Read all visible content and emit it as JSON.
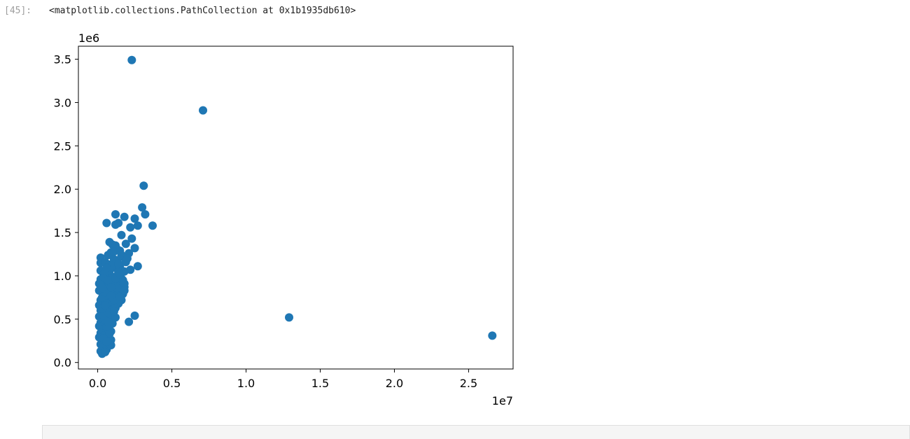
{
  "cell": {
    "prompt": "[45]:",
    "output_text": "<matplotlib.collections.PathCollection at 0x1b1935db610>"
  },
  "chart_data": {
    "type": "scatter",
    "color": "#1f77b4",
    "x_offset_label": "1e7",
    "y_offset_label": "1e6",
    "xlim": [
      -0.13,
      2.8
    ],
    "ylim": [
      -0.075,
      3.65
    ],
    "x_ticks": [
      0.0,
      0.5,
      1.0,
      1.5,
      2.0,
      2.5
    ],
    "x_tick_labels": [
      "0.0",
      "0.5",
      "1.0",
      "1.5",
      "2.0",
      "2.5"
    ],
    "y_ticks": [
      0.0,
      0.5,
      1.0,
      1.5,
      2.0,
      2.5,
      3.0,
      3.5
    ],
    "y_tick_labels": [
      "0.0",
      "0.5",
      "1.0",
      "1.5",
      "2.0",
      "2.5",
      "3.0",
      "3.5"
    ],
    "grid": false,
    "points": [
      [
        0.23,
        3.49
      ],
      [
        0.71,
        2.91
      ],
      [
        0.31,
        2.04
      ],
      [
        0.3,
        1.79
      ],
      [
        0.32,
        1.71
      ],
      [
        0.12,
        1.71
      ],
      [
        0.18,
        1.68
      ],
      [
        0.25,
        1.66
      ],
      [
        0.06,
        1.61
      ],
      [
        0.12,
        1.59
      ],
      [
        0.14,
        1.61
      ],
      [
        0.27,
        1.58
      ],
      [
        0.37,
        1.58
      ],
      [
        0.22,
        1.56
      ],
      [
        0.16,
        1.47
      ],
      [
        0.08,
        1.39
      ],
      [
        0.23,
        1.43
      ],
      [
        0.1,
        1.36
      ],
      [
        0.19,
        1.37
      ],
      [
        0.12,
        1.35
      ],
      [
        0.25,
        1.32
      ],
      [
        0.15,
        1.29
      ],
      [
        0.17,
        1.22
      ],
      [
        0.21,
        1.26
      ],
      [
        0.09,
        1.27
      ],
      [
        0.13,
        1.31
      ],
      [
        0.07,
        1.24
      ],
      [
        0.11,
        1.19
      ],
      [
        0.02,
        1.21
      ],
      [
        0.02,
        1.15
      ],
      [
        0.05,
        1.16
      ],
      [
        0.08,
        1.13
      ],
      [
        0.12,
        1.09
      ],
      [
        0.15,
        1.1
      ],
      [
        0.19,
        1.16
      ],
      [
        0.27,
        1.11
      ],
      [
        0.22,
        1.07
      ],
      [
        0.18,
        1.05
      ],
      [
        0.02,
        1.06
      ],
      [
        0.04,
        1.02
      ],
      [
        0.07,
        1.03
      ],
      [
        0.1,
        0.99
      ],
      [
        0.13,
        1.0
      ],
      [
        0.16,
        0.97
      ],
      [
        0.02,
        0.96
      ],
      [
        0.05,
        0.93
      ],
      [
        0.09,
        0.91
      ],
      [
        0.12,
        0.93
      ],
      [
        0.15,
        0.89
      ],
      [
        0.18,
        0.87
      ],
      [
        0.03,
        0.88
      ],
      [
        0.06,
        0.85
      ],
      [
        0.08,
        0.83
      ],
      [
        0.11,
        0.84
      ],
      [
        0.14,
        0.81
      ],
      [
        0.17,
        0.79
      ],
      [
        0.01,
        0.83
      ],
      [
        0.04,
        0.79
      ],
      [
        0.07,
        0.77
      ],
      [
        0.1,
        0.76
      ],
      [
        0.13,
        0.74
      ],
      [
        0.16,
        0.72
      ],
      [
        0.02,
        0.72
      ],
      [
        0.05,
        0.7
      ],
      [
        0.08,
        0.69
      ],
      [
        0.11,
        0.67
      ],
      [
        0.14,
        0.68
      ],
      [
        0.01,
        0.66
      ],
      [
        0.04,
        0.64
      ],
      [
        0.07,
        0.62
      ],
      [
        0.1,
        0.61
      ],
      [
        0.12,
        0.63
      ],
      [
        0.02,
        0.6
      ],
      [
        0.05,
        0.57
      ],
      [
        0.08,
        0.55
      ],
      [
        0.1,
        0.56
      ],
      [
        0.01,
        0.53
      ],
      [
        0.03,
        0.5
      ],
      [
        0.06,
        0.49
      ],
      [
        0.09,
        0.5
      ],
      [
        0.12,
        0.52
      ],
      [
        0.02,
        0.46
      ],
      [
        0.05,
        0.44
      ],
      [
        0.08,
        0.43
      ],
      [
        0.1,
        0.45
      ],
      [
        0.01,
        0.42
      ],
      [
        0.03,
        0.38
      ],
      [
        0.06,
        0.37
      ],
      [
        0.09,
        0.36
      ],
      [
        0.02,
        0.34
      ],
      [
        0.04,
        0.31
      ],
      [
        0.07,
        0.3
      ],
      [
        0.09,
        0.26
      ],
      [
        0.01,
        0.29
      ],
      [
        0.03,
        0.26
      ],
      [
        0.05,
        0.23
      ],
      [
        0.08,
        0.21
      ],
      [
        0.02,
        0.21
      ],
      [
        0.04,
        0.18
      ],
      [
        0.06,
        0.15
      ],
      [
        0.02,
        0.13
      ],
      [
        0.03,
        0.1
      ],
      [
        0.05,
        0.12
      ],
      [
        0.09,
        0.2
      ],
      [
        0.25,
        0.54
      ],
      [
        0.21,
        0.47
      ],
      [
        1.29,
        0.52
      ],
      [
        2.66,
        0.31
      ],
      [
        0.04,
        0.97
      ],
      [
        0.08,
        1.06
      ],
      [
        0.14,
        1.04
      ],
      [
        0.17,
        0.95
      ],
      [
        0.03,
        0.75
      ],
      [
        0.06,
        0.68
      ],
      [
        0.11,
        0.72
      ],
      [
        0.13,
        0.86
      ],
      [
        0.07,
        0.95
      ],
      [
        0.1,
        1.12
      ],
      [
        0.05,
        0.81
      ],
      [
        0.09,
        0.77
      ],
      [
        0.12,
        0.97
      ],
      [
        0.15,
        1.02
      ],
      [
        0.18,
        0.91
      ],
      [
        0.04,
        0.54
      ],
      [
        0.07,
        0.58
      ],
      [
        0.11,
        0.59
      ],
      [
        0.06,
        0.41
      ],
      [
        0.08,
        0.33
      ],
      [
        0.03,
        0.62
      ],
      [
        0.13,
        1.18
      ],
      [
        0.16,
        1.24
      ],
      [
        0.2,
        1.2
      ],
      [
        0.14,
        1.14
      ],
      [
        0.11,
        1.28
      ],
      [
        0.06,
        1.09
      ],
      [
        0.09,
        0.87
      ],
      [
        0.15,
        0.76
      ],
      [
        0.18,
        0.83
      ],
      [
        0.01,
        0.91
      ],
      [
        0.03,
        0.86
      ],
      [
        0.05,
        0.66
      ],
      [
        0.07,
        0.47
      ],
      [
        0.04,
        0.28
      ],
      [
        0.06,
        0.24
      ]
    ]
  }
}
